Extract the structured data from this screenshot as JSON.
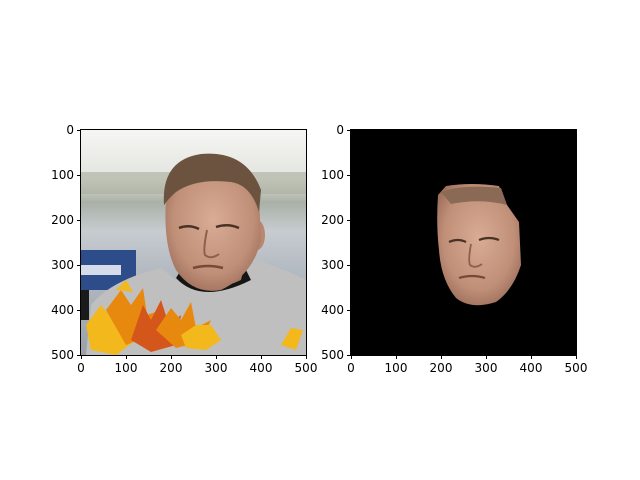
{
  "figure": {
    "axes": [
      {
        "id": "left",
        "content": "original photo with leaves overlay",
        "xticks": [
          "0",
          "100",
          "200",
          "300",
          "400",
          "500"
        ],
        "yticks": [
          "0",
          "100",
          "200",
          "300",
          "400",
          "500"
        ]
      },
      {
        "id": "right",
        "content": "segmented face mask on black",
        "xticks": [
          "0",
          "100",
          "200",
          "300",
          "400",
          "500"
        ],
        "yticks": [
          "0",
          "100",
          "200",
          "300",
          "400",
          "500"
        ]
      }
    ]
  },
  "colors": {
    "mask_background": "#000000",
    "shirt": "#bfbfc0",
    "skin": "#c89882",
    "hair": "#6b5340",
    "leaf_orange": "#e8890f",
    "leaf_yellow": "#f2b81c",
    "leaf_red": "#d4561a"
  }
}
